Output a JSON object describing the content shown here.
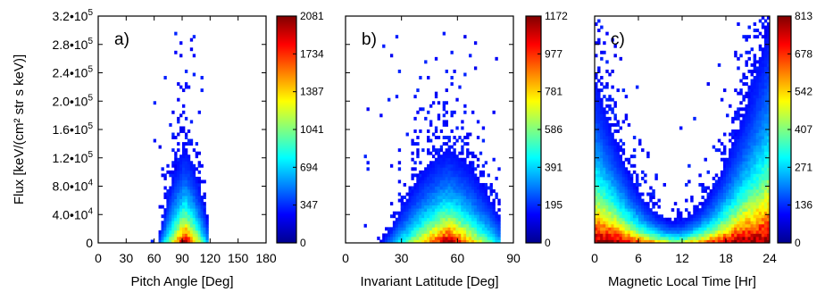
{
  "ylabel": "Flux [keV/(cm² str s keV)]",
  "y_ticks": [
    {
      "value": 0,
      "base": "0",
      "exp": ""
    },
    {
      "value": 40000,
      "base": "4.0•10",
      "exp": "4"
    },
    {
      "value": 80000,
      "base": "8.0•10",
      "exp": "4"
    },
    {
      "value": 120000,
      "base": "1.2•10",
      "exp": "5"
    },
    {
      "value": 160000,
      "base": "1.6•10",
      "exp": "5"
    },
    {
      "value": 200000,
      "base": "2.0•10",
      "exp": "5"
    },
    {
      "value": 240000,
      "base": "2.4•10",
      "exp": "5"
    },
    {
      "value": 280000,
      "base": "2.8•10",
      "exp": "5"
    },
    {
      "value": 320000,
      "base": "3.2•10",
      "exp": "5"
    }
  ],
  "chart_data": [
    {
      "type": "heatmap",
      "panel_label": "a)",
      "xlabel": "Pitch Angle [Deg]",
      "xlim": [
        0,
        180
      ],
      "ylim": [
        0,
        320000
      ],
      "x_ticks": [
        "0",
        "30",
        "60",
        "90",
        "120",
        "150",
        "180"
      ],
      "x_tick_values": [
        0,
        30,
        60,
        90,
        120,
        150,
        180
      ],
      "colorbar_ticks": [
        "2081",
        "1734",
        "1387",
        "1041",
        "694",
        "347",
        "0"
      ],
      "colorbar_max": 2081,
      "data_x_range": [
        57,
        118
      ],
      "peak_x": 93,
      "max_extent_y": 320000
    },
    {
      "type": "heatmap",
      "panel_label": "b)",
      "xlabel": "Invariant Latitude [Deg]",
      "xlim": [
        0,
        90
      ],
      "ylim": [
        0,
        320000
      ],
      "x_ticks": [
        "0",
        "30",
        "60",
        "90"
      ],
      "x_tick_values": [
        0,
        30,
        60,
        90
      ],
      "colorbar_ticks": [
        "1172",
        "977",
        "781",
        "586",
        "391",
        "195",
        "0"
      ],
      "colorbar_max": 1172,
      "data_x_range": [
        10,
        83
      ],
      "peak_x": 55,
      "max_extent_y": 320000
    },
    {
      "type": "heatmap",
      "panel_label": "c)",
      "xlabel": "Magnetic Local Time [Hr]",
      "xlim": [
        0,
        24
      ],
      "ylim": [
        0,
        320000
      ],
      "x_ticks": [
        "0",
        "6",
        "12",
        "18",
        "24"
      ],
      "x_tick_values": [
        0,
        6,
        12,
        18,
        24
      ],
      "colorbar_ticks": [
        "813",
        "678",
        "542",
        "407",
        "271",
        "136",
        "0"
      ],
      "colorbar_max": 813,
      "data_x_range": [
        0,
        24
      ],
      "minimum_x": 11,
      "max_extent_y": 320000
    }
  ]
}
